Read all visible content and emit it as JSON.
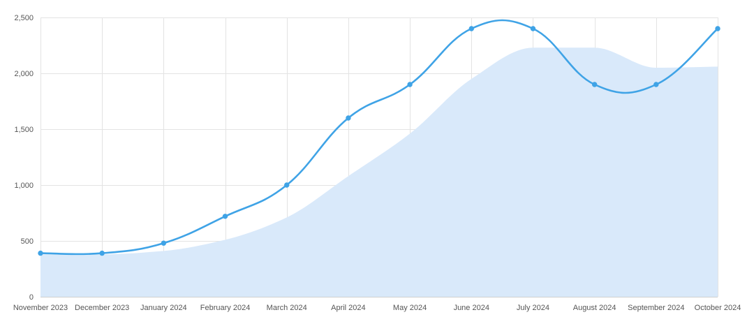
{
  "chart_data": {
    "type": "line",
    "title": "",
    "xlabel": "",
    "ylabel": "",
    "categories": [
      "November 2023",
      "December 2023",
      "January 2024",
      "February 2024",
      "March 2024",
      "April 2024",
      "May 2024",
      "June 2024",
      "July 2024",
      "August 2024",
      "September 2024",
      "October 2024"
    ],
    "y_ticks": [
      "0",
      "500",
      "1,000",
      "1,500",
      "2,000",
      "2,500"
    ],
    "ylim": [
      0,
      2500
    ],
    "grid": true,
    "legend": "none",
    "series": [
      {
        "kind": "line",
        "color": "#3fa3e6",
        "markers": true,
        "values": [
          390,
          390,
          480,
          720,
          1000,
          1600,
          1900,
          2400,
          2400,
          1900,
          1900,
          2400
        ]
      },
      {
        "kind": "area",
        "color": "#d9e9fa",
        "markers": false,
        "values": [
          380,
          380,
          410,
          510,
          710,
          1080,
          1460,
          1950,
          2230,
          2230,
          2050,
          2060
        ]
      }
    ]
  }
}
